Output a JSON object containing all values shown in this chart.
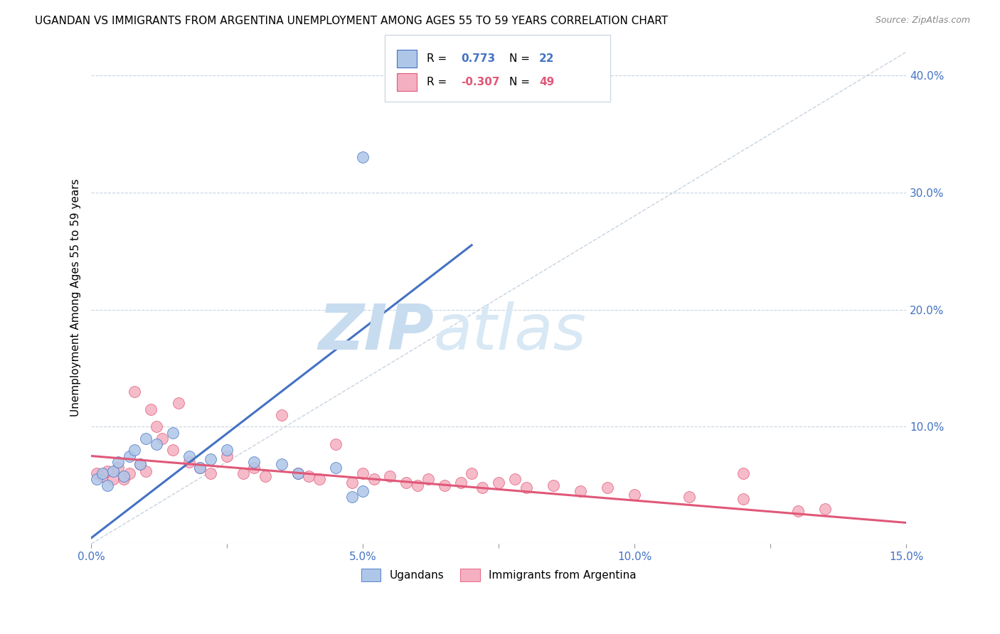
{
  "title": "UGANDAN VS IMMIGRANTS FROM ARGENTINA UNEMPLOYMENT AMONG AGES 55 TO 59 YEARS CORRELATION CHART",
  "source": "Source: ZipAtlas.com",
  "ylabel": "Unemployment Among Ages 55 to 59 years",
  "xlim": [
    0.0,
    0.15
  ],
  "ylim": [
    0.0,
    0.42
  ],
  "xticks": [
    0.0,
    0.025,
    0.05,
    0.075,
    0.1,
    0.125,
    0.15
  ],
  "xtick_labels": [
    "0.0%",
    "",
    "5.0%",
    "",
    "10.0%",
    "",
    "15.0%"
  ],
  "yticks_right": [
    0.0,
    0.1,
    0.2,
    0.3,
    0.4
  ],
  "ytick_labels_right": [
    "",
    "10.0%",
    "20.0%",
    "30.0%",
    "40.0%"
  ],
  "gridline_y": [
    0.1,
    0.2,
    0.3,
    0.4
  ],
  "ugandan_scatter_x": [
    0.001,
    0.002,
    0.003,
    0.004,
    0.005,
    0.006,
    0.007,
    0.008,
    0.009,
    0.01,
    0.012,
    0.015,
    0.018,
    0.02,
    0.022,
    0.025,
    0.03,
    0.035,
    0.038,
    0.045,
    0.048,
    0.05
  ],
  "ugandan_scatter_y": [
    0.055,
    0.06,
    0.05,
    0.062,
    0.07,
    0.058,
    0.075,
    0.08,
    0.068,
    0.09,
    0.085,
    0.095,
    0.075,
    0.065,
    0.072,
    0.08,
    0.07,
    0.068,
    0.06,
    0.065,
    0.04,
    0.045
  ],
  "ugandan_outlier_x": [
    0.05
  ],
  "ugandan_outlier_y": [
    0.33
  ],
  "argentina_scatter_x": [
    0.001,
    0.002,
    0.003,
    0.004,
    0.005,
    0.006,
    0.007,
    0.008,
    0.009,
    0.01,
    0.011,
    0.012,
    0.013,
    0.015,
    0.016,
    0.018,
    0.02,
    0.022,
    0.025,
    0.028,
    0.03,
    0.032,
    0.035,
    0.038,
    0.04,
    0.042,
    0.045,
    0.048,
    0.05,
    0.052,
    0.055,
    0.058,
    0.06,
    0.062,
    0.065,
    0.068,
    0.07,
    0.072,
    0.075,
    0.078,
    0.08,
    0.085,
    0.09,
    0.095,
    0.1,
    0.11,
    0.12,
    0.13,
    0.135
  ],
  "argentina_scatter_y": [
    0.06,
    0.058,
    0.062,
    0.055,
    0.065,
    0.055,
    0.06,
    0.13,
    0.068,
    0.062,
    0.115,
    0.1,
    0.09,
    0.08,
    0.12,
    0.07,
    0.065,
    0.06,
    0.075,
    0.06,
    0.065,
    0.058,
    0.11,
    0.06,
    0.058,
    0.055,
    0.085,
    0.052,
    0.06,
    0.055,
    0.058,
    0.052,
    0.05,
    0.055,
    0.05,
    0.052,
    0.06,
    0.048,
    0.052,
    0.055,
    0.048,
    0.05,
    0.045,
    0.048,
    0.042,
    0.04,
    0.038,
    0.028,
    0.03
  ],
  "argentina_outlier_x": [
    0.12
  ],
  "argentina_outlier_y": [
    0.06
  ],
  "blue_line_x": [
    0.0,
    0.07
  ],
  "blue_line_y": [
    0.005,
    0.255
  ],
  "pink_line_x": [
    0.0,
    0.15
  ],
  "pink_line_y": [
    0.075,
    0.018
  ],
  "diag_line_x": [
    0.0,
    0.15
  ],
  "diag_line_y": [
    0.0,
    0.42
  ],
  "ugandan_color": "#aec6e8",
  "argentina_color": "#f4afc0",
  "blue_line_color": "#4472c4",
  "pink_line_color": "#e05878",
  "diag_line_color": "#b8c8d8",
  "legend_label_ugandan": "Ugandans",
  "legend_label_argentina": "Immigrants from Argentina",
  "watermark_zip": "ZIP",
  "watermark_atlas": "atlas",
  "watermark_color": "#d5e5f5",
  "background_color": "#ffffff",
  "title_fontsize": 11,
  "axis_label_color": "#4472c4"
}
